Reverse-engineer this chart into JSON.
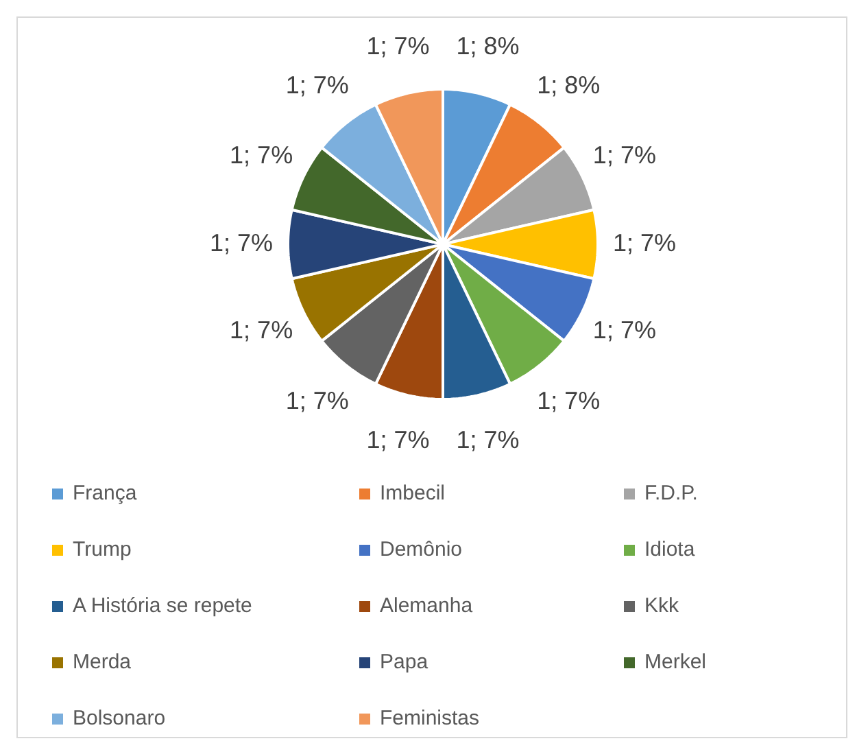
{
  "chart_data": {
    "type": "pie",
    "categories": [
      "França",
      "Imbecil",
      "F.D.P.",
      "Trump",
      "Demônio",
      "Idiota",
      "A História se repete",
      "Alemanha",
      "Kkk",
      "Merda",
      "Papa",
      "Merkel",
      "Bolsonaro",
      "Feministas"
    ],
    "values": [
      1,
      1,
      1,
      1,
      1,
      1,
      1,
      1,
      1,
      1,
      1,
      1,
      1,
      1
    ],
    "colors": [
      "#5b9bd5",
      "#ed7d31",
      "#a5a5a5",
      "#ffc000",
      "#4472c4",
      "#70ad47",
      "#255e91",
      "#9e480e",
      "#636363",
      "#997300",
      "#264478",
      "#43682b",
      "#7cafdd",
      "#f1975a"
    ],
    "value_labels": [
      "1; 8%",
      "1; 8%",
      "1; 7%",
      "1; 7%",
      "1; 7%",
      "1; 7%",
      "1; 7%",
      "1; 7%",
      "1; 7%",
      "1; 7%",
      "1; 7%",
      "1; 7%",
      "1; 7%",
      "1; 7%"
    ],
    "legend": "bottom"
  }
}
